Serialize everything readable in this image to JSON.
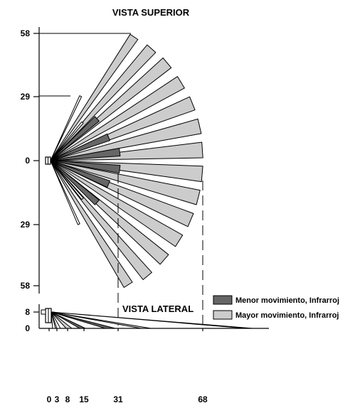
{
  "top_view": {
    "title": "VISTA SUPERIOR",
    "y_tick_labels": [
      "58",
      "29",
      "0",
      "29",
      "58"
    ]
  },
  "side_view": {
    "title": "VISTA LATERAL",
    "y_tick_labels": [
      "8",
      "0"
    ],
    "x_tick_labels": [
      "0",
      "3",
      "8",
      "15",
      "31",
      "68"
    ]
  },
  "legend": {
    "items": [
      {
        "label": "Menor movimiento, Infrarroj",
        "color": "#666666"
      },
      {
        "label": "Mayor movimiento, Infrarroj",
        "color": "#cccccc"
      }
    ]
  }
}
